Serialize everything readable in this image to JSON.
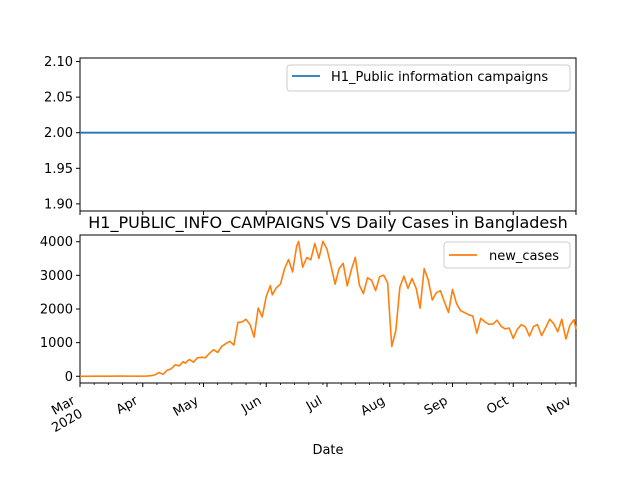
{
  "chart_data": [
    {
      "type": "line",
      "title": "",
      "xlabel": "",
      "ylabel": "",
      "ylim": [
        1.89,
        2.105
      ],
      "yticks": [
        "1.90",
        "1.95",
        "2.00",
        "2.05",
        "2.10"
      ],
      "ytick_values": [
        1.9,
        1.95,
        2.0,
        2.05,
        2.1
      ],
      "legend": "upper right",
      "series": [
        {
          "name": "H1_Public information campaigns",
          "color": "#1f77b4",
          "x": [
            "2020-03-01",
            "2020-11-01"
          ],
          "values": [
            2.0,
            2.0
          ]
        }
      ]
    },
    {
      "type": "line",
      "title": "H1_PUBLIC_INFO_CAMPAIGNS VS Daily Cases in Bangladesh",
      "xlabel": "Date",
      "ylabel": "",
      "ylim": [
        -200,
        4200
      ],
      "yticks": [
        "0",
        "1000",
        "2000",
        "3000",
        "4000"
      ],
      "ytick_values": [
        0,
        1000,
        2000,
        3000,
        4000
      ],
      "xticks": [
        "Mar\n2020",
        "Apr",
        "May",
        "Jun",
        "Jul",
        "Aug",
        "Sep",
        "Oct",
        "Nov"
      ],
      "xtick_dates": [
        "2020-03-01",
        "2020-04-01",
        "2020-05-01",
        "2020-06-01",
        "2020-07-01",
        "2020-08-01",
        "2020-09-01",
        "2020-10-01",
        "2020-11-01"
      ],
      "legend": "upper right",
      "series": [
        {
          "name": "new_cases",
          "color": "#ff7f0e",
          "points": [
            [
              "2020-03-01",
              0
            ],
            [
              "2020-03-08",
              3
            ],
            [
              "2020-03-15",
              2
            ],
            [
              "2020-03-22",
              5
            ],
            [
              "2020-03-29",
              2
            ],
            [
              "2020-04-03",
              5
            ],
            [
              "2020-04-05",
              18
            ],
            [
              "2020-04-07",
              40
            ],
            [
              "2020-04-09",
              112
            ],
            [
              "2020-04-11",
              58
            ],
            [
              "2020-04-13",
              182
            ],
            [
              "2020-04-15",
              219
            ],
            [
              "2020-04-17",
              341
            ],
            [
              "2020-04-19",
              312
            ],
            [
              "2020-04-21",
              434
            ],
            [
              "2020-04-22",
              390
            ],
            [
              "2020-04-24",
              503
            ],
            [
              "2020-04-26",
              418
            ],
            [
              "2020-04-28",
              549
            ],
            [
              "2020-04-30",
              564
            ],
            [
              "2020-05-02",
              552
            ],
            [
              "2020-05-04",
              688
            ],
            [
              "2020-05-06",
              790
            ],
            [
              "2020-05-08",
              709
            ],
            [
              "2020-05-10",
              887
            ],
            [
              "2020-05-12",
              969
            ],
            [
              "2020-05-14",
              1041
            ],
            [
              "2020-05-16",
              930
            ],
            [
              "2020-05-18",
              1602
            ],
            [
              "2020-05-20",
              1617
            ],
            [
              "2020-05-22",
              1694
            ],
            [
              "2020-05-24",
              1532
            ],
            [
              "2020-05-26",
              1166
            ],
            [
              "2020-05-28",
              2029
            ],
            [
              "2020-05-30",
              1764
            ],
            [
              "2020-06-01",
              2381
            ],
            [
              "2020-06-03",
              2695
            ],
            [
              "2020-06-04",
              2423
            ],
            [
              "2020-06-06",
              2635
            ],
            [
              "2020-06-08",
              2735
            ],
            [
              "2020-06-10",
              3190
            ],
            [
              "2020-06-12",
              3471
            ],
            [
              "2020-06-14",
              3099
            ],
            [
              "2020-06-16",
              3862
            ],
            [
              "2020-06-17",
              4008
            ],
            [
              "2020-06-19",
              3243
            ],
            [
              "2020-06-21",
              3531
            ],
            [
              "2020-06-23",
              3462
            ],
            [
              "2020-06-25",
              3946
            ],
            [
              "2020-06-27",
              3504
            ],
            [
              "2020-06-29",
              4014
            ],
            [
              "2020-07-01",
              3775
            ],
            [
              "2020-07-03",
              3288
            ],
            [
              "2020-07-05",
              2738
            ],
            [
              "2020-07-07",
              3201
            ],
            [
              "2020-07-09",
              3360
            ],
            [
              "2020-07-11",
              2686
            ],
            [
              "2020-07-13",
              3163
            ],
            [
              "2020-07-15",
              3533
            ],
            [
              "2020-07-17",
              2709
            ],
            [
              "2020-07-19",
              2459
            ],
            [
              "2020-07-21",
              2928
            ],
            [
              "2020-07-23",
              2856
            ],
            [
              "2020-07-25",
              2548
            ],
            [
              "2020-07-27",
              2960
            ],
            [
              "2020-07-29",
              3009
            ],
            [
              "2020-07-31",
              2772
            ],
            [
              "2020-08-01",
              1800
            ],
            [
              "2020-08-02",
              887
            ],
            [
              "2020-08-04",
              1356
            ],
            [
              "2020-08-06",
              2654
            ],
            [
              "2020-08-08",
              2977
            ],
            [
              "2020-08-10",
              2611
            ],
            [
              "2020-08-12",
              2907
            ],
            [
              "2020-08-14",
              2617
            ],
            [
              "2020-08-16",
              2024
            ],
            [
              "2020-08-18",
              3200
            ],
            [
              "2020-08-20",
              2868
            ],
            [
              "2020-08-22",
              2265
            ],
            [
              "2020-08-24",
              2485
            ],
            [
              "2020-08-26",
              2545
            ],
            [
              "2020-08-28",
              2211
            ],
            [
              "2020-08-30",
              1897
            ],
            [
              "2020-09-01",
              2582
            ],
            [
              "2020-09-03",
              2158
            ],
            [
              "2020-09-05",
              1950
            ],
            [
              "2020-09-07",
              1892
            ],
            [
              "2020-09-09",
              1827
            ],
            [
              "2020-09-11",
              1792
            ],
            [
              "2020-09-13",
              1282
            ],
            [
              "2020-09-15",
              1724
            ],
            [
              "2020-09-17",
              1615
            ],
            [
              "2020-09-19",
              1545
            ],
            [
              "2020-09-21",
              1557
            ],
            [
              "2020-09-23",
              1666
            ],
            [
              "2020-09-25",
              1488
            ],
            [
              "2020-09-27",
              1407
            ],
            [
              "2020-09-29",
              1436
            ],
            [
              "2020-10-01",
              1125
            ],
            [
              "2020-10-03",
              1396
            ],
            [
              "2020-10-05",
              1537
            ],
            [
              "2020-10-07",
              1469
            ],
            [
              "2020-10-09",
              1193
            ],
            [
              "2020-10-11",
              1478
            ],
            [
              "2020-10-13",
              1537
            ],
            [
              "2020-10-15",
              1209
            ],
            [
              "2020-10-17",
              1442
            ],
            [
              "2020-10-19",
              1696
            ],
            [
              "2020-10-21",
              1564
            ],
            [
              "2020-10-23",
              1326
            ],
            [
              "2020-10-25",
              1693
            ],
            [
              "2020-10-27",
              1106
            ],
            [
              "2020-10-29",
              1515
            ],
            [
              "2020-10-31",
              1681
            ],
            [
              "2020-11-01",
              1400
            ]
          ]
        }
      ]
    }
  ]
}
